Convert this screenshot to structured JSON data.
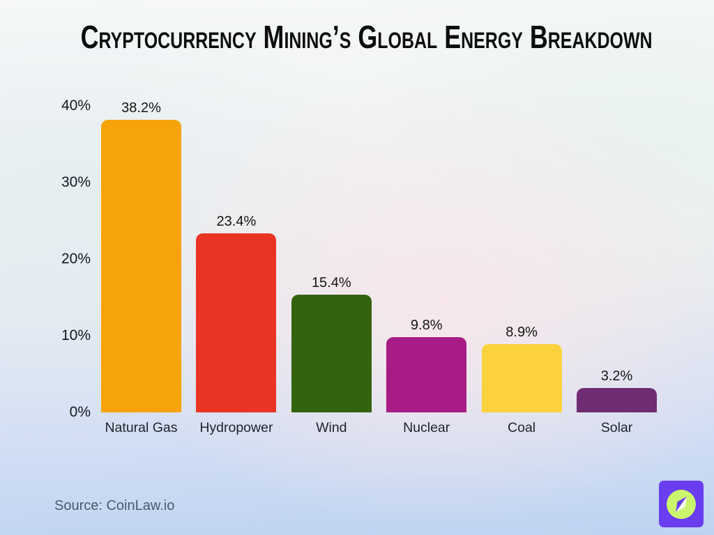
{
  "title": "Cryptocurrency Mining’s Global Energy Breakdown",
  "source": "Source: CoinLaw.io",
  "logo": {
    "icon": "compass-icon",
    "bg_color": "#6a3df1",
    "circle_color": "#ccf56e",
    "needle_light_color": "#f7faf0",
    "needle_dark_color": "#6a3df1"
  },
  "chart_data": {
    "type": "bar",
    "title": "Cryptocurrency Mining’s Global Energy Breakdown",
    "categories": [
      "Natural Gas",
      "Hydropower",
      "Wind",
      "Nuclear",
      "Coal",
      "Solar"
    ],
    "values": [
      38.2,
      23.4,
      15.4,
      9.8,
      8.9,
      3.2
    ],
    "value_labels": [
      "38.2%",
      "23.4%",
      "15.4%",
      "9.8%",
      "8.9%",
      "3.2%"
    ],
    "bar_colors": [
      "#f7a30a",
      "#e93424",
      "#346310",
      "#a81c85",
      "#fbd23d",
      "#6e2d72"
    ],
    "xlabel": "",
    "ylabel": "",
    "ylim": [
      0,
      40
    ],
    "yticks": [
      "40%",
      "30%",
      "20%",
      "10%",
      "0%"
    ],
    "grid": false,
    "legend": false,
    "axis_lines": false
  }
}
